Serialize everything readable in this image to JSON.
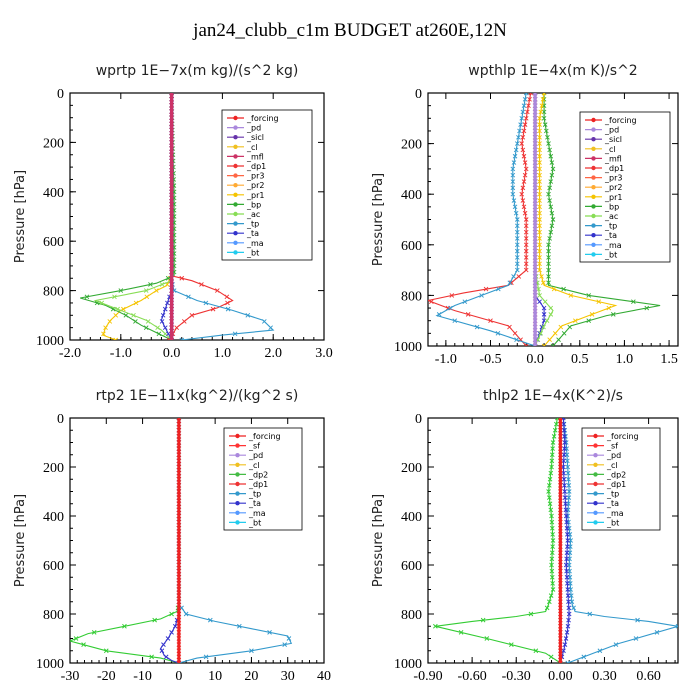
{
  "figure_title": "jan24_clubb_c1m  BUDGET at260E,12N",
  "chart_data": [
    {
      "type": "line",
      "title": "wprtp   1E−7x(m kg)/(s^2 kg)",
      "ylabel": "Pressure [hPa]",
      "ylim": [
        1000,
        0
      ],
      "xlim": [
        -2.0,
        3.0
      ],
      "xticks": [
        "-2.0",
        "-1.0",
        "0.0",
        "1.0",
        "2.0",
        "3.0"
      ],
      "xtick_values": [
        -2,
        -1,
        0,
        1,
        2,
        3
      ],
      "yticks": [
        "0",
        "200",
        "400",
        "600",
        "800",
        "1000"
      ],
      "ytick_values": [
        0,
        200,
        400,
        600,
        800,
        1000
      ],
      "legend": [
        "_forcing",
        "_pd",
        "_sicl",
        "_cl",
        "_mfl",
        "_dp1",
        "_pr3",
        "_pr2",
        "_pr1",
        "_bp",
        "_ac",
        "_tp",
        "_ta",
        "_ma",
        "_bt"
      ],
      "series": [
        {
          "name": "_pr1",
          "color": "#f5c400",
          "x": [
            0,
            0,
            0,
            0,
            0,
            -0.05,
            -0.1,
            -0.3,
            -0.6,
            -1.0,
            -1.2,
            -1.3,
            -1.35,
            -1.1
          ],
          "y": [
            0,
            200,
            400,
            600,
            740,
            760,
            780,
            800,
            840,
            880,
            920,
            950,
            980,
            1000
          ]
        },
        {
          "name": "_bp",
          "color": "#33aa33",
          "x": [
            0,
            0.02,
            0.05,
            0.05,
            0.05,
            -0.3,
            -1.0,
            -1.8,
            -1.3,
            -0.9,
            -0.6,
            -0.3,
            0
          ],
          "y": [
            0,
            200,
            400,
            600,
            740,
            770,
            800,
            830,
            860,
            900,
            940,
            970,
            1000
          ]
        },
        {
          "name": "_ac",
          "color": "#88dd55",
          "x": [
            0,
            0,
            0,
            0,
            0,
            -0.5,
            -1.5,
            -1.0,
            -0.5,
            -0.2,
            0
          ],
          "y": [
            0,
            200,
            400,
            600,
            760,
            800,
            840,
            880,
            920,
            960,
            1000
          ]
        },
        {
          "name": "_dp1",
          "color": "#ee3333",
          "x": [
            0,
            0,
            0,
            0,
            0,
            0.4,
            0.9,
            1.2,
            0.9,
            0.4,
            0.1,
            -0.05
          ],
          "y": [
            0,
            200,
            400,
            600,
            740,
            760,
            800,
            840,
            870,
            900,
            950,
            1000
          ]
        },
        {
          "name": "_tp",
          "color": "#3399cc",
          "x": [
            0,
            0,
            0,
            0,
            0,
            0.05,
            0.5,
            1.2,
            1.8,
            2.0,
            1.0,
            0.2
          ],
          "y": [
            0,
            200,
            400,
            600,
            760,
            800,
            840,
            880,
            920,
            960,
            980,
            1000
          ]
        },
        {
          "name": "_ta",
          "color": "#3333cc",
          "x": [
            0,
            0,
            0,
            0,
            0,
            0,
            -0.1,
            -0.2,
            -0.1,
            0
          ],
          "y": [
            0,
            200,
            400,
            600,
            760,
            800,
            860,
            920,
            960,
            1000
          ]
        },
        {
          "name": "_forcing",
          "color": "#000000",
          "x": [
            0,
            0,
            0,
            0,
            0,
            0
          ],
          "y": [
            0,
            200,
            400,
            600,
            800,
            1000
          ]
        },
        {
          "name": "_pd",
          "color": "#aa88dd",
          "x": [
            0,
            0,
            0,
            0,
            0,
            0
          ],
          "y": [
            0,
            200,
            400,
            600,
            800,
            1000
          ]
        },
        {
          "name": "_sicl",
          "color": "#6633aa",
          "x": [
            0,
            0,
            0,
            0,
            0,
            0
          ],
          "y": [
            0,
            200,
            400,
            600,
            800,
            1000
          ]
        },
        {
          "name": "_cl",
          "color": "#aa33aa",
          "x": [
            0,
            0,
            0,
            0,
            0,
            0
          ],
          "y": [
            0,
            200,
            400,
            600,
            800,
            1000
          ]
        },
        {
          "name": "_mfl",
          "color": "#cc3366",
          "x": [
            0,
            0,
            0,
            0,
            0,
            0
          ],
          "y": [
            0,
            200,
            400,
            600,
            800,
            1000
          ]
        }
      ]
    },
    {
      "type": "line",
      "title": "wpthlp   1E−4x(m K)/s^2",
      "ylabel": "Pressure [hPa]",
      "ylim": [
        1000,
        0
      ],
      "xlim": [
        -1.2,
        1.6
      ],
      "xticks": [
        "-1.0",
        "-0.5",
        "0.0",
        "0.5",
        "1.0",
        "1.5"
      ],
      "xtick_values": [
        -1.0,
        -0.5,
        0.0,
        0.5,
        1.0,
        1.5
      ],
      "yticks": [
        "0",
        "200",
        "400",
        "600",
        "800",
        "1000"
      ],
      "ytick_values": [
        0,
        200,
        400,
        600,
        800,
        1000
      ],
      "legend": [
        "_forcing",
        "_pd",
        "_sicl",
        "_cl",
        "_mfl",
        "_dp1",
        "_pr3",
        "_pr2",
        "_pr1",
        "_bp",
        "_ac",
        "_tp",
        "_ta",
        "_ma",
        "_bt"
      ],
      "series": [
        {
          "name": "_bp",
          "color": "#33aa33",
          "x": [
            0.1,
            0.1,
            0.15,
            0.2,
            0.15,
            0.2,
            0.15,
            0.15,
            0.15,
            0.6,
            1.4,
            0.8,
            0.4,
            0.2
          ],
          "y": [
            0,
            100,
            200,
            300,
            400,
            500,
            600,
            700,
            760,
            800,
            840,
            880,
            920,
            1000
          ]
        },
        {
          "name": "_dp1",
          "color": "#ee3333",
          "x": [
            -0.05,
            -0.1,
            -0.15,
            -0.1,
            -0.15,
            -0.1,
            -0.1,
            -0.1,
            -0.3,
            -0.8,
            -1.2,
            -0.9,
            -0.3,
            -0.1
          ],
          "y": [
            0,
            100,
            200,
            300,
            400,
            500,
            600,
            700,
            760,
            790,
            820,
            860,
            920,
            1000
          ]
        },
        {
          "name": "_tp",
          "color": "#3399cc",
          "x": [
            -0.1,
            -0.15,
            -0.2,
            -0.25,
            -0.25,
            -0.2,
            -0.2,
            -0.2,
            -0.3,
            -0.6,
            -0.9,
            -1.1,
            -0.5,
            0
          ],
          "y": [
            0,
            100,
            200,
            300,
            400,
            500,
            600,
            700,
            760,
            800,
            840,
            880,
            940,
            1000
          ]
        },
        {
          "name": "_pr1",
          "color": "#f5c400",
          "x": [
            0.1,
            0.05,
            0.05,
            0.05,
            0.05,
            0.05,
            0.05,
            0.05,
            0.1,
            0.4,
            0.9,
            0.6,
            0.3,
            0.1
          ],
          "y": [
            0,
            100,
            200,
            300,
            400,
            500,
            600,
            700,
            760,
            800,
            840,
            880,
            920,
            1000
          ]
        },
        {
          "name": "_ta",
          "color": "#3333cc",
          "x": [
            0,
            0,
            0,
            0,
            0,
            0,
            0,
            0,
            0,
            0.1,
            0.1,
            0.05,
            0
          ],
          "y": [
            0,
            100,
            200,
            300,
            400,
            500,
            600,
            700,
            800,
            850,
            900,
            950,
            1000
          ]
        },
        {
          "name": "_ac",
          "color": "#88dd55",
          "x": [
            0,
            0,
            0,
            0,
            0,
            0,
            0,
            0,
            0.05,
            0.2,
            0.1,
            0
          ],
          "y": [
            0,
            100,
            200,
            300,
            400,
            500,
            600,
            700,
            800,
            860,
            920,
            1000
          ]
        },
        {
          "name": "_mfl",
          "color": "#cc3366",
          "x": [
            0,
            0,
            0,
            0,
            0,
            0
          ],
          "y": [
            0,
            200,
            400,
            600,
            800,
            1000
          ]
        },
        {
          "name": "_pd",
          "color": "#aa88dd",
          "x": [
            0,
            0,
            0,
            0,
            0,
            0
          ],
          "y": [
            0,
            200,
            400,
            600,
            800,
            1000
          ]
        }
      ]
    },
    {
      "type": "line",
      "title": "rtp2   1E−11x(kg^2)/(kg^2 s)",
      "ylabel": "Pressure [hPa]",
      "ylim": [
        1000,
        0
      ],
      "xlim": [
        -30,
        40
      ],
      "xticks": [
        "-30",
        "-20",
        "-10",
        "0",
        "10",
        "20",
        "30",
        "40"
      ],
      "xtick_values": [
        -30,
        -20,
        -10,
        0,
        10,
        20,
        30,
        40
      ],
      "yticks": [
        "0",
        "200",
        "400",
        "600",
        "800",
        "1000"
      ],
      "ytick_values": [
        0,
        200,
        400,
        600,
        800,
        1000
      ],
      "legend": [
        "_forcing",
        "_sf",
        "_pd",
        "_cl",
        "_dp2",
        "_dp1",
        "_tp",
        "_ta",
        "_ma",
        "_bt"
      ],
      "series": [
        {
          "name": "_dp1",
          "color": "#33cc33",
          "x": [
            0,
            0,
            0,
            0,
            0,
            -0.5,
            -5,
            -15,
            -25,
            -30,
            -20,
            -5,
            0
          ],
          "y": [
            0,
            200,
            400,
            600,
            760,
            790,
            820,
            850,
            880,
            910,
            950,
            980,
            1000
          ]
        },
        {
          "name": "_tp",
          "color": "#3399cc",
          "x": [
            0,
            0,
            0,
            0,
            0,
            2,
            10,
            20,
            30,
            31,
            20,
            5,
            0
          ],
          "y": [
            0,
            200,
            400,
            600,
            760,
            800,
            830,
            860,
            890,
            920,
            950,
            980,
            1000
          ]
        },
        {
          "name": "_ta",
          "color": "#3333cc",
          "x": [
            0,
            0,
            0,
            0,
            0,
            -1,
            -3,
            -5,
            -4,
            -2,
            0
          ],
          "y": [
            0,
            200,
            400,
            600,
            800,
            850,
            900,
            940,
            970,
            990,
            1000
          ]
        },
        {
          "name": "_forcing",
          "color": "#ee2222",
          "x": [
            0,
            0,
            0,
            0,
            0,
            0
          ],
          "y": [
            0,
            200,
            400,
            600,
            800,
            1000
          ]
        }
      ]
    },
    {
      "type": "line",
      "title": "thlp2   1E−4x(K^2)/s",
      "ylabel": "Pressure [hPa]",
      "ylim": [
        1000,
        0
      ],
      "xlim": [
        -0.9,
        0.8
      ],
      "xticks": [
        "-0.90",
        "-0.60",
        "-0.30",
        "0.00",
        "0.30",
        "0.60"
      ],
      "xtick_values": [
        -0.9,
        -0.6,
        -0.3,
        0.0,
        0.3,
        0.6
      ],
      "yticks": [
        "0",
        "200",
        "400",
        "600",
        "800",
        "1000"
      ],
      "ytick_values": [
        0,
        200,
        400,
        600,
        800,
        1000
      ],
      "legend": [
        "_forcing",
        "_sf",
        "_pd",
        "_cl",
        "_dp2",
        "_dp1",
        "_tp",
        "_ta",
        "_ma",
        "_bt"
      ],
      "series": [
        {
          "name": "_dp1",
          "color": "#33cc33",
          "x": [
            -0.02,
            -0.05,
            -0.06,
            -0.08,
            -0.06,
            -0.05,
            -0.06,
            -0.05,
            -0.08,
            -0.1,
            -0.3,
            -0.6,
            -0.85,
            -0.5,
            -0.1,
            0
          ],
          "y": [
            0,
            100,
            200,
            300,
            400,
            500,
            600,
            700,
            760,
            790,
            810,
            830,
            850,
            900,
            960,
            1000
          ]
        },
        {
          "name": "_tp",
          "color": "#3399cc",
          "x": [
            0.02,
            0.04,
            0.05,
            0.06,
            0.05,
            0.07,
            0.06,
            0.07,
            0.08,
            0.1,
            0.3,
            0.6,
            0.8,
            0.4,
            0.05
          ],
          "y": [
            0,
            100,
            200,
            300,
            400,
            500,
            600,
            700,
            760,
            790,
            810,
            830,
            850,
            920,
            1000
          ]
        },
        {
          "name": "_ta",
          "color": "#3333cc",
          "x": [
            0.02,
            0.03,
            0.02,
            0.03,
            0.04,
            0.05,
            0.04,
            0.05,
            0.06,
            0.05,
            0.03,
            0
          ],
          "y": [
            0,
            100,
            200,
            300,
            400,
            500,
            600,
            700,
            800,
            860,
            930,
            1000
          ]
        },
        {
          "name": "_forcing",
          "color": "#ee2222",
          "x": [
            0,
            0,
            0,
            0,
            0,
            0
          ],
          "y": [
            0,
            200,
            400,
            600,
            800,
            1000
          ]
        }
      ]
    }
  ]
}
